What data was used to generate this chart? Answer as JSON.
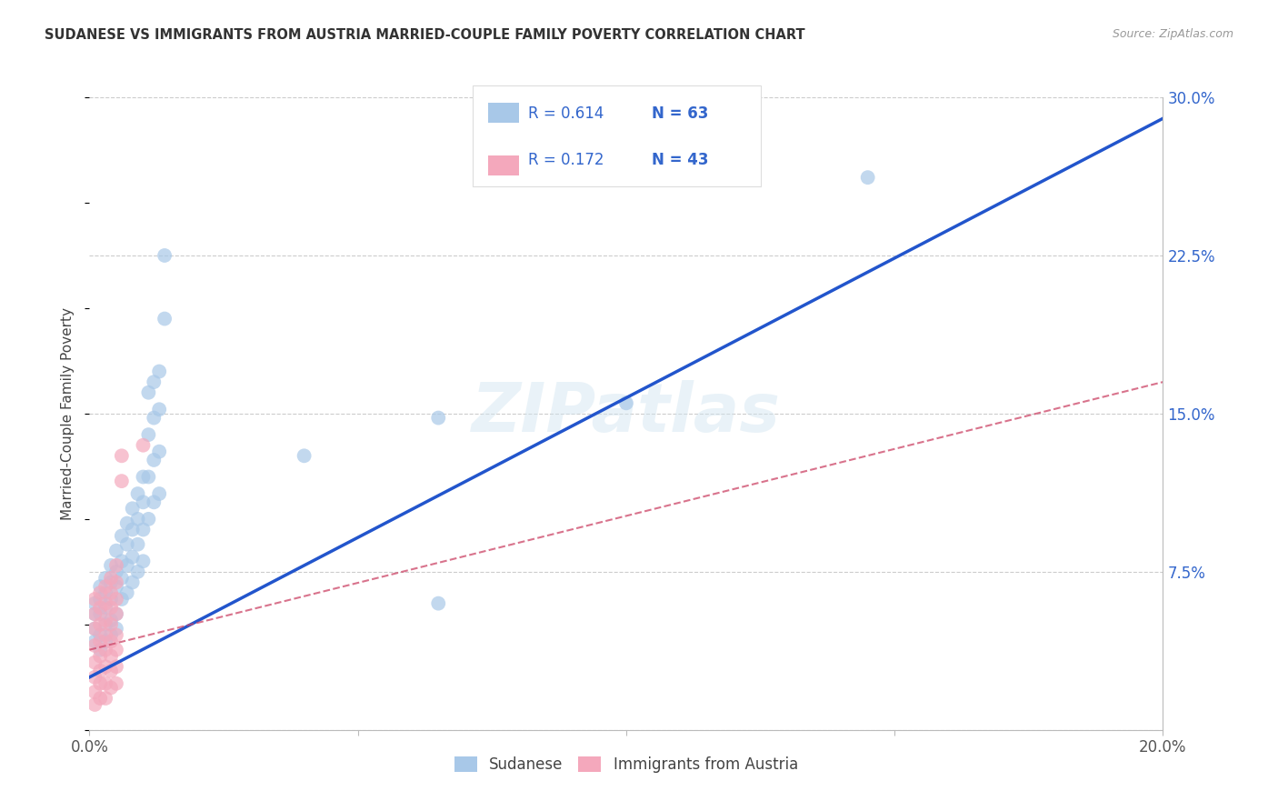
{
  "title": "SUDANESE VS IMMIGRANTS FROM AUSTRIA MARRIED-COUPLE FAMILY POVERTY CORRELATION CHART",
  "source": "Source: ZipAtlas.com",
  "ylabel_label": "Married-Couple Family Poverty",
  "xmin": 0.0,
  "xmax": 0.2,
  "ymin": 0.0,
  "ymax": 0.3,
  "xticks": [
    0.0,
    0.05,
    0.1,
    0.15,
    0.2
  ],
  "xtick_labels": [
    "0.0%",
    "",
    "",
    "",
    "20.0%"
  ],
  "yticks": [
    0.0,
    0.075,
    0.15,
    0.225,
    0.3
  ],
  "ytick_labels": [
    "",
    "7.5%",
    "15.0%",
    "22.5%",
    "30.0%"
  ],
  "legend_blue_R": "R = 0.614",
  "legend_blue_N": "N = 63",
  "legend_pink_R": "R = 0.172",
  "legend_pink_N": "N = 43",
  "legend_label_blue": "Sudanese",
  "legend_label_pink": "Immigrants from Austria",
  "blue_color": "#a8c8e8",
  "pink_color": "#f4a8bc",
  "blue_line_color": "#2255cc",
  "pink_line_color": "#cc4466",
  "watermark": "ZIPatlas",
  "blue_scatter": [
    [
      0.001,
      0.06
    ],
    [
      0.001,
      0.055
    ],
    [
      0.001,
      0.048
    ],
    [
      0.001,
      0.042
    ],
    [
      0.002,
      0.068
    ],
    [
      0.002,
      0.062
    ],
    [
      0.002,
      0.055
    ],
    [
      0.002,
      0.045
    ],
    [
      0.002,
      0.038
    ],
    [
      0.003,
      0.072
    ],
    [
      0.003,
      0.065
    ],
    [
      0.003,
      0.058
    ],
    [
      0.003,
      0.05
    ],
    [
      0.003,
      0.042
    ],
    [
      0.004,
      0.078
    ],
    [
      0.004,
      0.07
    ],
    [
      0.004,
      0.062
    ],
    [
      0.004,
      0.052
    ],
    [
      0.004,
      0.045
    ],
    [
      0.005,
      0.085
    ],
    [
      0.005,
      0.075
    ],
    [
      0.005,
      0.068
    ],
    [
      0.005,
      0.055
    ],
    [
      0.005,
      0.048
    ],
    [
      0.006,
      0.092
    ],
    [
      0.006,
      0.08
    ],
    [
      0.006,
      0.072
    ],
    [
      0.006,
      0.062
    ],
    [
      0.007,
      0.098
    ],
    [
      0.007,
      0.088
    ],
    [
      0.007,
      0.078
    ],
    [
      0.007,
      0.065
    ],
    [
      0.008,
      0.105
    ],
    [
      0.008,
      0.095
    ],
    [
      0.008,
      0.082
    ],
    [
      0.008,
      0.07
    ],
    [
      0.009,
      0.112
    ],
    [
      0.009,
      0.1
    ],
    [
      0.009,
      0.088
    ],
    [
      0.009,
      0.075
    ],
    [
      0.01,
      0.12
    ],
    [
      0.01,
      0.108
    ],
    [
      0.01,
      0.095
    ],
    [
      0.01,
      0.08
    ],
    [
      0.011,
      0.16
    ],
    [
      0.011,
      0.14
    ],
    [
      0.011,
      0.12
    ],
    [
      0.011,
      0.1
    ],
    [
      0.012,
      0.165
    ],
    [
      0.012,
      0.148
    ],
    [
      0.012,
      0.128
    ],
    [
      0.012,
      0.108
    ],
    [
      0.013,
      0.17
    ],
    [
      0.013,
      0.152
    ],
    [
      0.013,
      0.132
    ],
    [
      0.013,
      0.112
    ],
    [
      0.014,
      0.225
    ],
    [
      0.014,
      0.195
    ],
    [
      0.04,
      0.13
    ],
    [
      0.065,
      0.148
    ],
    [
      0.1,
      0.155
    ],
    [
      0.145,
      0.262
    ],
    [
      0.065,
      0.06
    ]
  ],
  "pink_scatter": [
    [
      0.001,
      0.062
    ],
    [
      0.001,
      0.055
    ],
    [
      0.001,
      0.048
    ],
    [
      0.001,
      0.04
    ],
    [
      0.001,
      0.032
    ],
    [
      0.001,
      0.025
    ],
    [
      0.001,
      0.018
    ],
    [
      0.001,
      0.012
    ],
    [
      0.002,
      0.065
    ],
    [
      0.002,
      0.058
    ],
    [
      0.002,
      0.05
    ],
    [
      0.002,
      0.042
    ],
    [
      0.002,
      0.035
    ],
    [
      0.002,
      0.028
    ],
    [
      0.002,
      0.022
    ],
    [
      0.002,
      0.015
    ],
    [
      0.003,
      0.068
    ],
    [
      0.003,
      0.06
    ],
    [
      0.003,
      0.052
    ],
    [
      0.003,
      0.045
    ],
    [
      0.003,
      0.038
    ],
    [
      0.003,
      0.03
    ],
    [
      0.003,
      0.022
    ],
    [
      0.003,
      0.015
    ],
    [
      0.004,
      0.072
    ],
    [
      0.004,
      0.065
    ],
    [
      0.004,
      0.058
    ],
    [
      0.004,
      0.05
    ],
    [
      0.004,
      0.042
    ],
    [
      0.004,
      0.035
    ],
    [
      0.004,
      0.028
    ],
    [
      0.004,
      0.02
    ],
    [
      0.005,
      0.078
    ],
    [
      0.005,
      0.07
    ],
    [
      0.005,
      0.062
    ],
    [
      0.005,
      0.055
    ],
    [
      0.005,
      0.045
    ],
    [
      0.005,
      0.038
    ],
    [
      0.005,
      0.03
    ],
    [
      0.005,
      0.022
    ],
    [
      0.006,
      0.13
    ],
    [
      0.006,
      0.118
    ],
    [
      0.01,
      0.135
    ]
  ],
  "blue_trend_x": [
    0.0,
    0.2
  ],
  "blue_trend_y": [
    0.025,
    0.29
  ],
  "pink_trend_x": [
    0.0,
    0.2
  ],
  "pink_trend_y": [
    0.038,
    0.165
  ]
}
